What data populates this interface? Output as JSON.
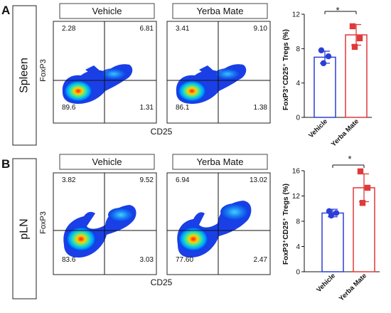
{
  "panels": [
    {
      "letter": "A",
      "tissue": "Spleen",
      "flow": {
        "ylabel": "FoxP3",
        "xlabel": "CD25",
        "plots": [
          {
            "title": "Vehicle",
            "q_tl": "2.28",
            "q_tr": "6.81",
            "q_bl": "89.6",
            "q_br": "1.31"
          },
          {
            "title": "Yerba Mate",
            "q_tl": "3.41",
            "q_tr": "9.10",
            "q_bl": "86.1",
            "q_br": "1.38"
          }
        ]
      },
      "sig": "*"
    },
    {
      "letter": "B",
      "tissue": "pLN",
      "flow": {
        "ylabel": "FoxP3",
        "xlabel": "CD25",
        "plots": [
          {
            "title": "Vehicle",
            "q_tl": "3.82",
            "q_tr": "9.52",
            "q_bl": "83.6",
            "q_br": "3.03"
          },
          {
            "title": "Yerba Mate",
            "q_tl": "6.94",
            "q_tr": "13.02",
            "q_bl": "77.60",
            "q_br": "2.47"
          }
        ]
      },
      "sig": "*"
    }
  ],
  "chart_data": [
    {
      "type": "bar",
      "categories": [
        "Vehicle",
        "Yerba Mate"
      ],
      "colors": [
        "#2b3fd6",
        "#e0393a"
      ],
      "bar_means": [
        7.0,
        9.6
      ],
      "points": [
        [
          7.8,
          7.1,
          6.3
        ],
        [
          10.6,
          9.2,
          8.2
        ]
      ],
      "error": [
        0.7,
        1.2
      ],
      "ylabel": "FoxP3⁺CD25⁺ Tregs (%)",
      "ylim": [
        0,
        12
      ],
      "yticks": [
        "0",
        "4",
        "8",
        "12"
      ]
    },
    {
      "type": "bar",
      "categories": [
        "Vehicle",
        "Yerba Mate"
      ],
      "colors": [
        "#2b3fd6",
        "#e0393a"
      ],
      "bar_means": [
        9.3,
        13.3
      ],
      "points": [
        [
          9.6,
          9.3,
          8.9
        ],
        [
          15.9,
          13.3,
          10.9
        ]
      ],
      "error": [
        0.6,
        2.2
      ],
      "ylabel": "FoxP3⁺CD25⁺ Tregs (%)",
      "ylim": [
        0,
        16
      ],
      "yticks": [
        "0",
        "4",
        "8",
        "12",
        "16"
      ]
    }
  ]
}
